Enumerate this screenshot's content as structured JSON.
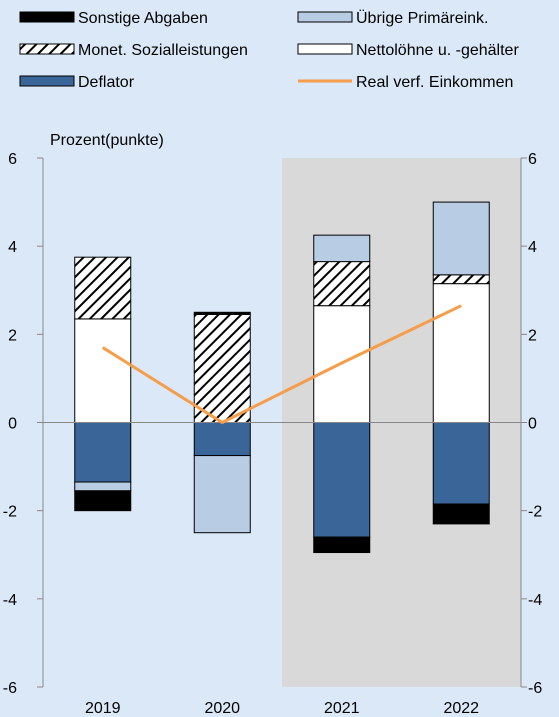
{
  "chart_data": {
    "type": "bar",
    "stacked": true,
    "title": "",
    "ylabel": "Prozent(punkte)",
    "xlabel": "",
    "ylim": [
      -6,
      6
    ],
    "yticks": [
      6,
      4,
      2,
      0,
      -2,
      -4,
      -6
    ],
    "y_axes": "left and right",
    "grid": false,
    "legend_position": "top",
    "forecast_shading": [
      "2021",
      "2022"
    ],
    "categories": [
      "2019",
      "2020",
      "2021",
      "2022"
    ],
    "colors": {
      "background": "#dbe8f7",
      "forecast_shade": "#d9d9d9",
      "sonstige_abgaben": "#000000",
      "uebrige_primaereink": "#b8cce4",
      "monet_sozialleistungen": "#ffffff",
      "nettoloehne": "#ffffff",
      "deflator": "#3a6598",
      "real_verf_einkommen": "#f59d4a"
    },
    "series": [
      {
        "key": "sonstige_abgaben",
        "name": "Sonstige Abgaben",
        "kind": "bar",
        "values": [
          -0.45,
          0.05,
          -0.35,
          -0.45
        ]
      },
      {
        "key": "uebrige_primaereink",
        "name": "Übrige Primäreink.",
        "kind": "bar",
        "values": [
          -0.2,
          -1.75,
          0.6,
          1.65
        ]
      },
      {
        "key": "monet_sozialleistungen",
        "name": "Monet. Sozialleistungen",
        "kind": "bar",
        "pattern": "hatched",
        "values": [
          1.4,
          2.45,
          1.0,
          0.2
        ]
      },
      {
        "key": "nettoloehne",
        "name": "Nettolöhne u. -gehälter",
        "kind": "bar",
        "values": [
          2.35,
          0.0,
          2.65,
          3.15
        ]
      },
      {
        "key": "deflator",
        "name": "Deflator",
        "kind": "bar",
        "values": [
          -1.35,
          -0.75,
          -2.6,
          -1.85
        ]
      },
      {
        "key": "real_verf_einkommen",
        "name": "Real verf. Einkommen",
        "kind": "line",
        "values": [
          1.7,
          0.0,
          1.35,
          2.65
        ]
      }
    ]
  }
}
